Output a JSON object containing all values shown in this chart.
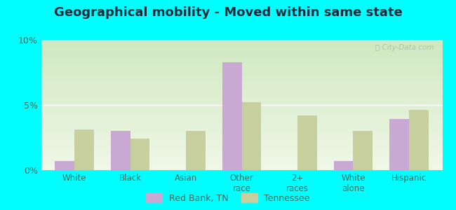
{
  "title": "Geographical mobility - Moved within same state",
  "categories": [
    "White",
    "Black",
    "Asian",
    "Other\nrace",
    "2+\nraces",
    "White\nalone",
    "Hispanic"
  ],
  "red_bank": [
    0.7,
    3.0,
    0.0,
    8.3,
    0.0,
    0.7,
    3.9
  ],
  "tennessee": [
    3.1,
    2.4,
    3.0,
    5.2,
    4.2,
    3.0,
    4.6
  ],
  "bar_color_rb": "#c9a8d4",
  "bar_color_tn": "#c8cf9e",
  "bg_top": "#f0f8e8",
  "bg_bottom": "#d0e8c0",
  "outer_background": "#00ffff",
  "ylim": [
    0,
    10
  ],
  "yticks": [
    0,
    5,
    10
  ],
  "ytick_labels": [
    "0%",
    "5%",
    "10%"
  ],
  "title_fontsize": 13,
  "title_color": "#1a2a3a",
  "tick_color": "#446655",
  "legend_rb": "Red Bank, TN",
  "legend_tn": "Tennessee",
  "bar_width": 0.35
}
